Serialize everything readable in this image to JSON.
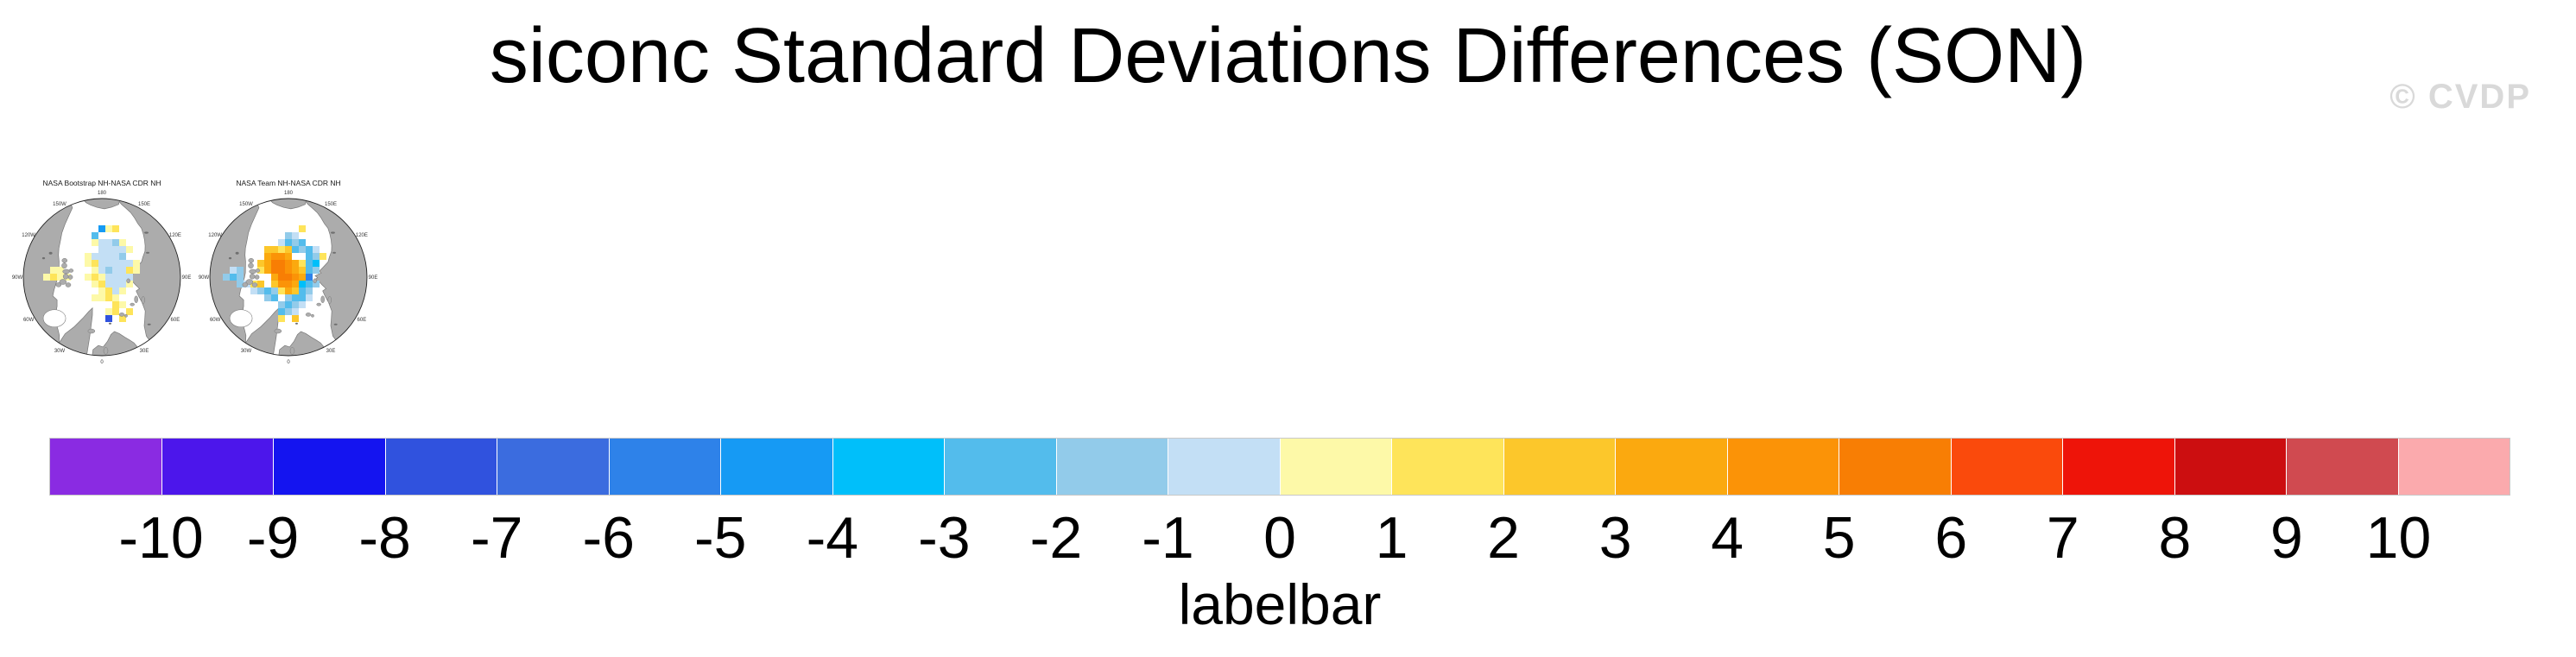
{
  "watermark": "© CVDP",
  "chart_data": {
    "type": "heatmap",
    "title": "siconc Standard Deviations Differences (SON)",
    "variable": "siconc",
    "season": "SON",
    "projection": "NH polar stereographic",
    "lon_labels": [
      {
        "text": "180",
        "angle": 0
      },
      {
        "text": "150E",
        "angle": 30
      },
      {
        "text": "120E",
        "angle": 60
      },
      {
        "text": "90E",
        "angle": 90
      },
      {
        "text": "60E",
        "angle": 120
      },
      {
        "text": "30E",
        "angle": 150
      },
      {
        "text": "0",
        "angle": 180
      },
      {
        "text": "30W",
        "angle": 210
      },
      {
        "text": "60W",
        "angle": 240
      },
      {
        "text": "90W",
        "angle": 270
      },
      {
        "text": "120W",
        "angle": 300
      },
      {
        "text": "150W",
        "angle": 330
      }
    ],
    "panels": [
      {
        "title": "NASA Bootstrap NH-NASA CDR NH",
        "pattern": "pale blue (-1 to -2) patch over central Arctic with scattered pale yellow (0 to 1) cells around its rim, Canadian Archipelago and Kara coast; isolated deep blue and cyan dots",
        "cells": [
          [
            0,
            -5,
            10
          ],
          [
            1,
            -5,
            10
          ],
          [
            2,
            -5,
            9
          ],
          [
            -1,
            -5,
            11
          ],
          [
            3,
            -5,
            11
          ],
          [
            0,
            -4,
            10
          ],
          [
            1,
            -4,
            10
          ],
          [
            2,
            -4,
            10
          ],
          [
            3,
            -4,
            10
          ],
          [
            4,
            -4,
            11
          ],
          [
            -2,
            -3,
            11
          ],
          [
            -1,
            -3,
            10
          ],
          [
            0,
            -3,
            10
          ],
          [
            1,
            -3,
            10
          ],
          [
            2,
            -3,
            10
          ],
          [
            3,
            -3,
            9
          ],
          [
            -2,
            -2,
            11
          ],
          [
            -1,
            -2,
            12
          ],
          [
            0,
            -2,
            10
          ],
          [
            1,
            -2,
            10
          ],
          [
            2,
            -2,
            10
          ],
          [
            3,
            -2,
            10
          ],
          [
            4,
            -2,
            10
          ],
          [
            5,
            -2,
            11
          ],
          [
            -1,
            -1,
            11
          ],
          [
            0,
            -1,
            10
          ],
          [
            1,
            -1,
            9
          ],
          [
            2,
            -1,
            10
          ],
          [
            3,
            -1,
            10
          ],
          [
            4,
            -1,
            12
          ],
          [
            5,
            -1,
            11
          ],
          [
            -2,
            0,
            11
          ],
          [
            -1,
            0,
            12
          ],
          [
            0,
            0,
            11
          ],
          [
            1,
            0,
            10
          ],
          [
            2,
            0,
            10
          ],
          [
            3,
            0,
            10
          ],
          [
            4,
            0,
            10
          ],
          [
            -1,
            1,
            11
          ],
          [
            0,
            1,
            12
          ],
          [
            1,
            1,
            10
          ],
          [
            2,
            1,
            10
          ],
          [
            3,
            1,
            10
          ],
          [
            4,
            1,
            11
          ],
          [
            0,
            2,
            11
          ],
          [
            1,
            2,
            12
          ],
          [
            2,
            2,
            10
          ],
          [
            3,
            2,
            11
          ],
          [
            -1,
            3,
            11
          ],
          [
            0,
            3,
            11
          ],
          [
            1,
            3,
            12
          ],
          [
            2,
            3,
            11
          ],
          [
            2,
            4,
            12
          ],
          [
            3,
            4,
            11
          ],
          [
            1,
            5,
            11
          ],
          [
            2,
            5,
            12
          ],
          [
            3,
            6,
            12
          ],
          [
            1,
            6,
            3
          ],
          [
            4,
            5,
            12
          ],
          [
            -5,
            0,
            11
          ],
          [
            -6,
            0,
            11
          ],
          [
            -7,
            0,
            12
          ],
          [
            -8,
            0,
            11
          ],
          [
            -6,
            -1,
            11
          ],
          [
            -7,
            -1,
            11
          ],
          [
            0,
            -7,
            6
          ],
          [
            -1,
            -6,
            8
          ],
          [
            1,
            -7,
            11
          ],
          [
            2,
            -7,
            12
          ]
        ]
      },
      {
        "title": "NASA Team NH-NASA CDR NH",
        "pattern": "orange (4 to 6) blob centered near the pole ringed by yellow, surrounded by sky-blue and azure (-1 to -4) cells extending toward Siberia, Fram Strait and the Beaufort/CAA side; few yellow cells at edges",
        "cells": [
          [
            -2,
            -3,
            15
          ],
          [
            -1,
            -3,
            15
          ],
          [
            0,
            -3,
            14
          ],
          [
            -3,
            -3,
            14
          ],
          [
            -2,
            -2,
            16
          ],
          [
            -1,
            -2,
            16
          ],
          [
            0,
            -2,
            15
          ],
          [
            -3,
            -2,
            14
          ],
          [
            1,
            -2,
            14
          ],
          [
            -2,
            -1,
            16
          ],
          [
            -1,
            -1,
            16
          ],
          [
            0,
            -1,
            15
          ],
          [
            -3,
            -1,
            14
          ],
          [
            1,
            -1,
            14
          ],
          [
            -1,
            0,
            16
          ],
          [
            0,
            0,
            16
          ],
          [
            1,
            0,
            15
          ],
          [
            -2,
            0,
            14
          ],
          [
            2,
            0,
            14
          ],
          [
            -1,
            1,
            15
          ],
          [
            0,
            1,
            15
          ],
          [
            1,
            1,
            14
          ],
          [
            -2,
            1,
            13
          ],
          [
            0,
            2,
            14
          ],
          [
            1,
            2,
            13
          ],
          [
            -1,
            2,
            12
          ],
          [
            -3,
            -4,
            13
          ],
          [
            -2,
            -4,
            13
          ],
          [
            -1,
            -4,
            12
          ],
          [
            0,
            -4,
            13
          ],
          [
            1,
            -4,
            8
          ],
          [
            -4,
            -2,
            13
          ],
          [
            -4,
            -1,
            12
          ],
          [
            2,
            -2,
            12
          ],
          [
            2,
            -1,
            13
          ],
          [
            0,
            -5,
            8
          ],
          [
            1,
            -5,
            9
          ],
          [
            2,
            -5,
            8
          ],
          [
            -1,
            -5,
            10
          ],
          [
            2,
            -4,
            9
          ],
          [
            3,
            -4,
            8
          ],
          [
            4,
            -4,
            10
          ],
          [
            3,
            -3,
            8
          ],
          [
            4,
            -3,
            9
          ],
          [
            3,
            -2,
            8
          ],
          [
            4,
            -2,
            7
          ],
          [
            3,
            -1,
            8
          ],
          [
            4,
            -1,
            9
          ],
          [
            3,
            0,
            5
          ],
          [
            2,
            1,
            7
          ],
          [
            3,
            1,
            8
          ],
          [
            2,
            2,
            8
          ],
          [
            3,
            2,
            9
          ],
          [
            1,
            3,
            8
          ],
          [
            2,
            3,
            8
          ],
          [
            0,
            3,
            9
          ],
          [
            3,
            3,
            10
          ],
          [
            1,
            4,
            9
          ],
          [
            0,
            4,
            8
          ],
          [
            -1,
            4,
            9
          ],
          [
            2,
            4,
            10
          ],
          [
            -2,
            3,
            8
          ],
          [
            -3,
            3,
            9
          ],
          [
            -2,
            2,
            9
          ],
          [
            -3,
            2,
            8
          ],
          [
            -4,
            2,
            9
          ],
          [
            -5,
            2,
            10
          ],
          [
            0,
            5,
            9
          ],
          [
            1,
            5,
            10
          ],
          [
            -1,
            5,
            8
          ],
          [
            -7,
            -1,
            9
          ],
          [
            -8,
            -1,
            10
          ],
          [
            -7,
            0,
            9
          ],
          [
            -8,
            0,
            8
          ],
          [
            -9,
            0,
            9
          ],
          [
            -6,
            1,
            10
          ],
          [
            -7,
            1,
            9
          ],
          [
            0,
            -6,
            9
          ],
          [
            1,
            -6,
            10
          ],
          [
            2,
            -7,
            12
          ],
          [
            -4,
            1,
            13
          ],
          [
            -5,
            1,
            12
          ],
          [
            1,
            6,
            13
          ],
          [
            -1,
            6,
            12
          ],
          [
            4,
            1,
            9
          ],
          [
            5,
            -3,
            12
          ]
        ]
      }
    ],
    "labelbar": {
      "title": "labelbar",
      "tick_labels": [
        "-10",
        "-9",
        "-8",
        "-7",
        "-6",
        "-5",
        "-4",
        "-3",
        "-2",
        "-1",
        "0",
        "1",
        "2",
        "3",
        "4",
        "5",
        "6",
        "7",
        "8",
        "9",
        "10"
      ],
      "levels": [
        -10,
        -9,
        -8,
        -7,
        -6,
        -5,
        -4,
        -3,
        -2,
        -1,
        0,
        1,
        2,
        3,
        4,
        5,
        6,
        7,
        8,
        9,
        10
      ],
      "colors": [
        "#8A2BE2",
        "#4C16EB",
        "#1414F0",
        "#3052DE",
        "#3B6CDF",
        "#2E82E9",
        "#169AF4",
        "#00BFFA",
        "#53BCEC",
        "#92CBEA",
        "#C3DFF5",
        "#FDF9A8",
        "#FEE45A",
        "#FCC72B",
        "#FBA90F",
        "#FB9307",
        "#F87E04",
        "#FA4A0C",
        "#EE1409",
        "#CC0E10",
        "#D04A50",
        "#FBAAAD"
      ],
      "land_color": "#ACACAC",
      "ocean_color": "#FFFFFF"
    }
  }
}
